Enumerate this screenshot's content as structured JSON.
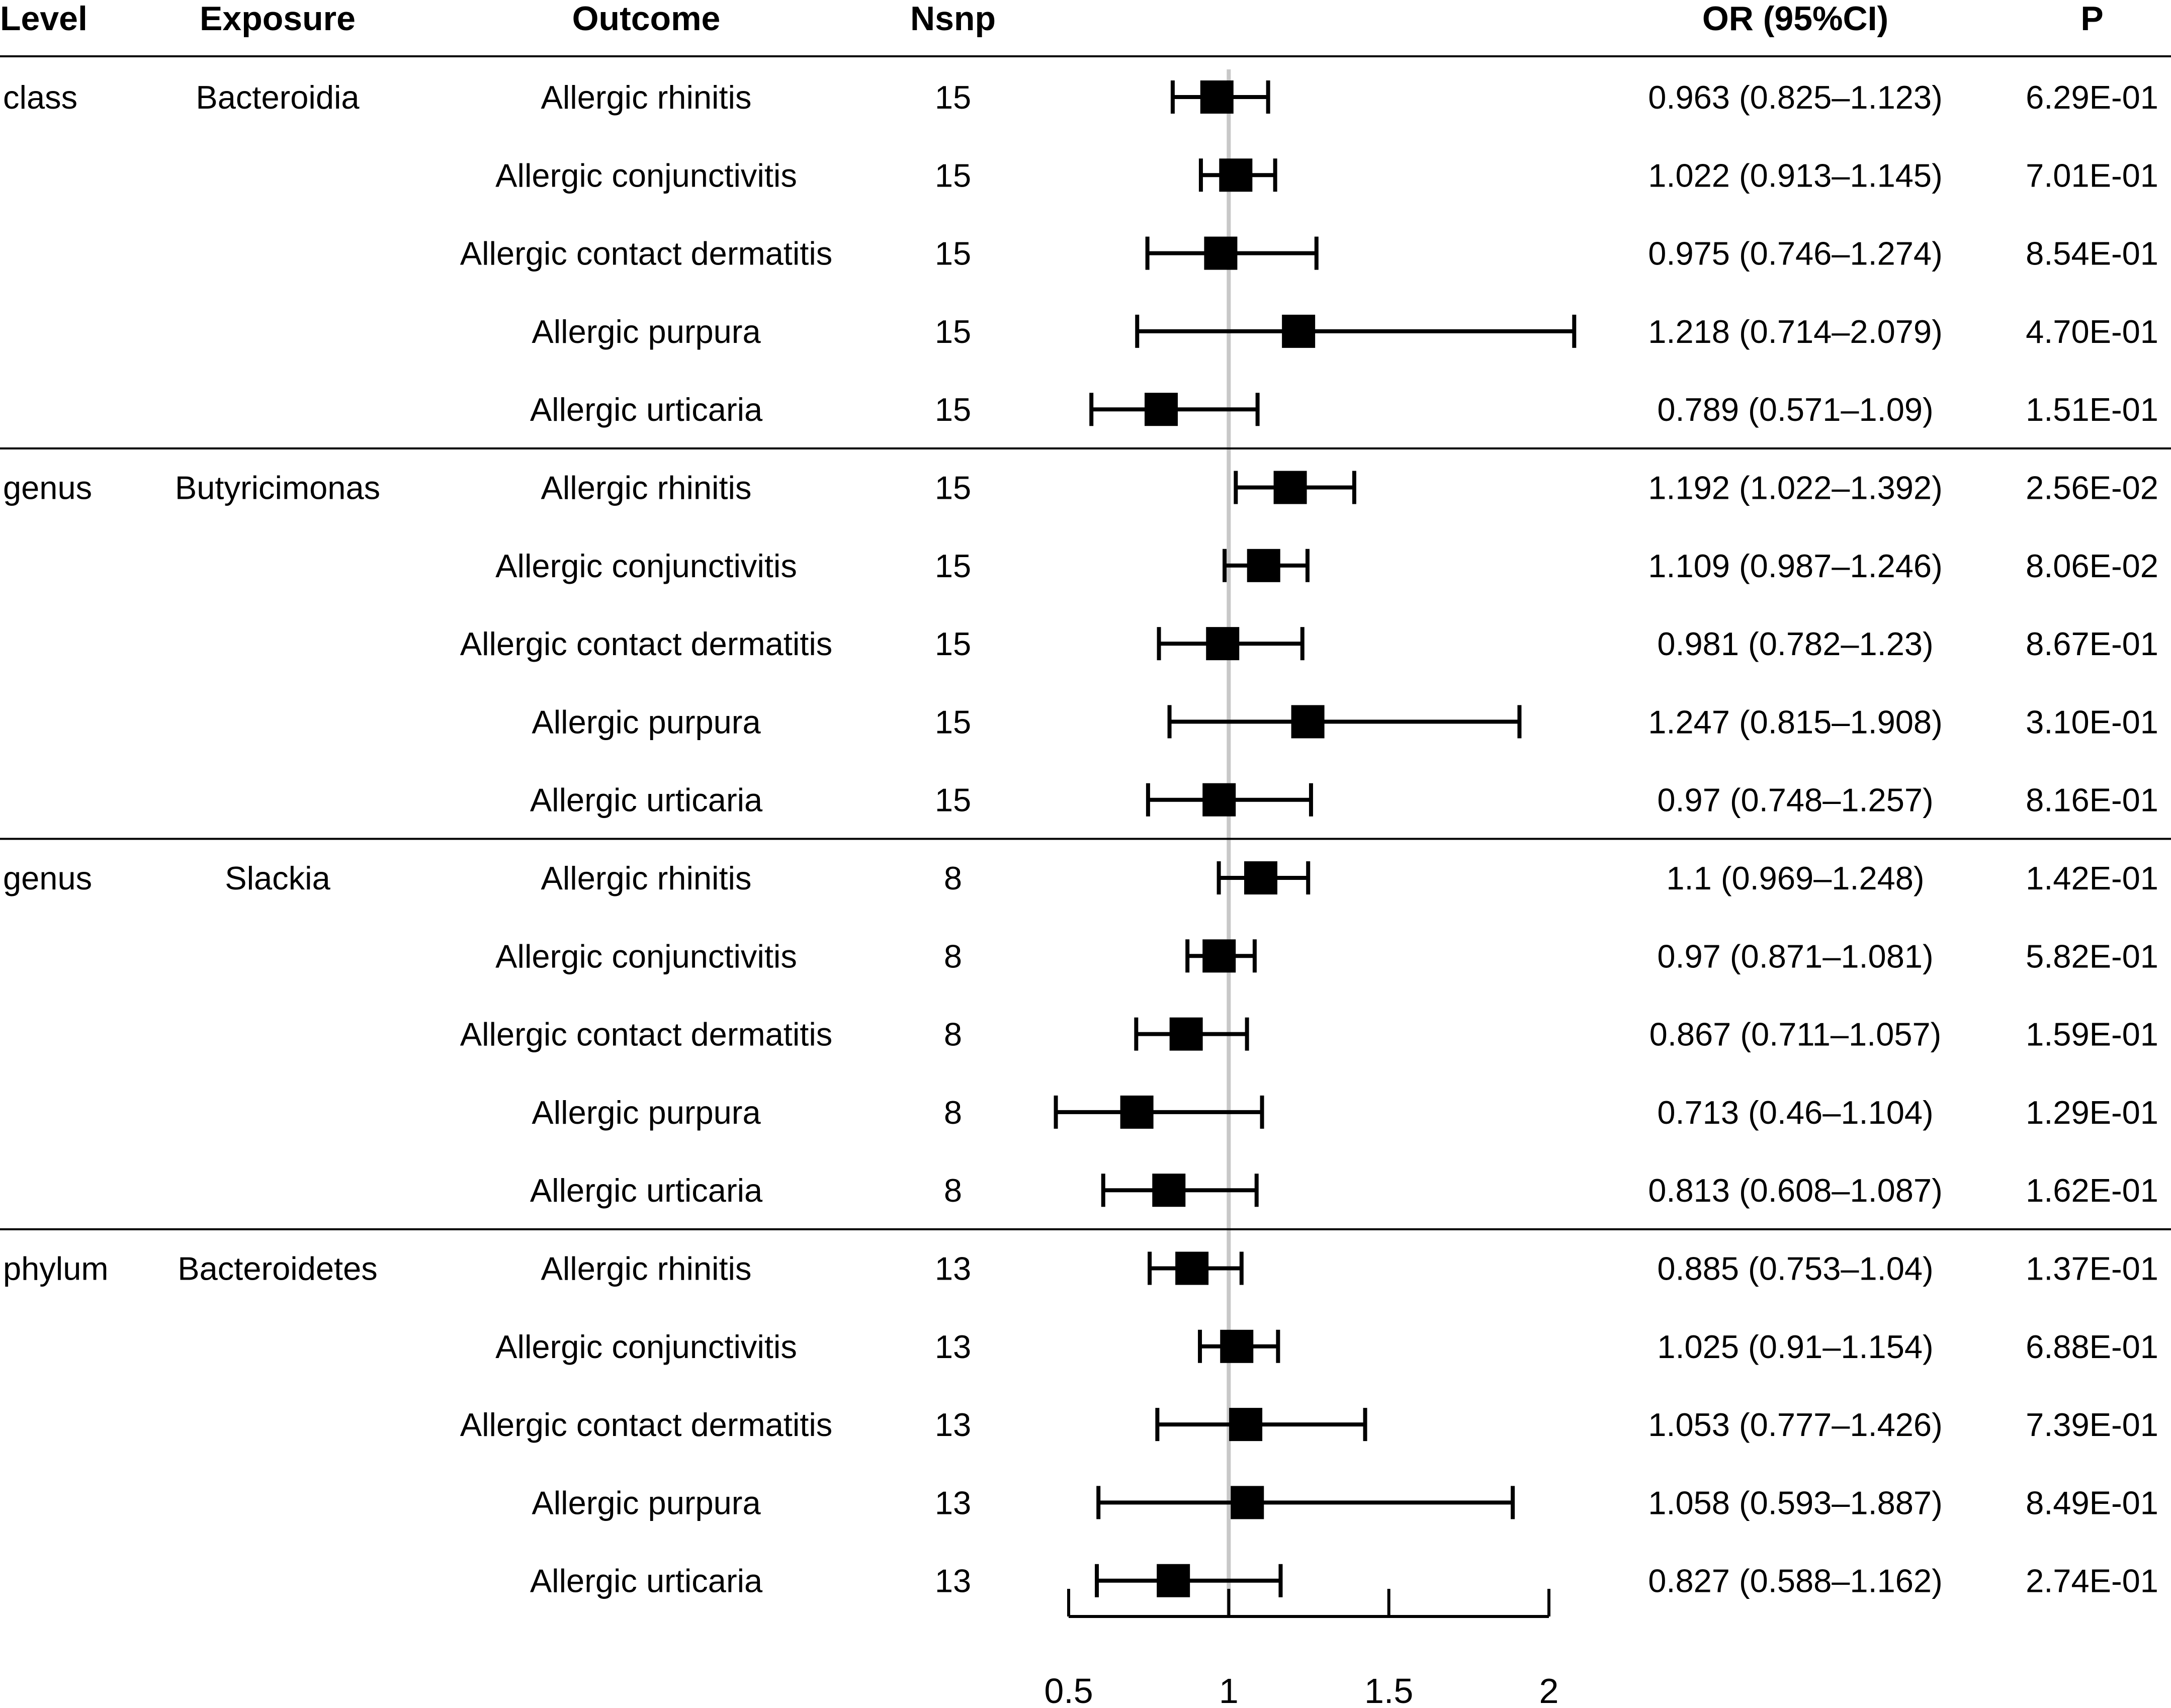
{
  "chart_data": {
    "type": "forest",
    "headers": {
      "level": "Level",
      "exposure": "Exposure",
      "outcome": "Outcome",
      "nsnp": "Nsnp",
      "or_ci": "OR (95%CI)",
      "p": "P"
    },
    "xaxis": {
      "min": 0.5,
      "max": 2,
      "ticks": [
        0.5,
        1,
        1.5,
        2
      ],
      "tick_labels": [
        "0.5",
        "1",
        "1.5",
        "2"
      ],
      "reference": 1
    },
    "groups": [
      {
        "level": "class",
        "exposure": "Bacteroidia",
        "rows": [
          {
            "outcome": "Allergic rhinitis",
            "nsnp": "15",
            "or": 0.963,
            "lower": 0.825,
            "upper": 1.123,
            "or_ci": "0.963 (0.825–1.123)",
            "p": "6.29E-01"
          },
          {
            "outcome": "Allergic conjunctivitis",
            "nsnp": "15",
            "or": 1.022,
            "lower": 0.913,
            "upper": 1.145,
            "or_ci": "1.022 (0.913–1.145)",
            "p": "7.01E-01"
          },
          {
            "outcome": "Allergic contact dermatitis",
            "nsnp": "15",
            "or": 0.975,
            "lower": 0.746,
            "upper": 1.274,
            "or_ci": "0.975 (0.746–1.274)",
            "p": "8.54E-01"
          },
          {
            "outcome": "Allergic purpura",
            "nsnp": "15",
            "or": 1.218,
            "lower": 0.714,
            "upper": 2.079,
            "or_ci": "1.218 (0.714–2.079)",
            "p": "4.70E-01"
          },
          {
            "outcome": "Allergic urticaria",
            "nsnp": "15",
            "or": 0.789,
            "lower": 0.571,
            "upper": 1.09,
            "or_ci": "0.789 (0.571–1.09)",
            "p": "1.51E-01"
          }
        ]
      },
      {
        "level": "genus",
        "exposure": "Butyricimonas",
        "rows": [
          {
            "outcome": "Allergic rhinitis",
            "nsnp": "15",
            "or": 1.192,
            "lower": 1.022,
            "upper": 1.392,
            "or_ci": "1.192 (1.022–1.392)",
            "p": "2.56E-02"
          },
          {
            "outcome": "Allergic conjunctivitis",
            "nsnp": "15",
            "or": 1.109,
            "lower": 0.987,
            "upper": 1.246,
            "or_ci": "1.109 (0.987–1.246)",
            "p": "8.06E-02"
          },
          {
            "outcome": "Allergic contact dermatitis",
            "nsnp": "15",
            "or": 0.981,
            "lower": 0.782,
            "upper": 1.23,
            "or_ci": "0.981 (0.782–1.23)",
            "p": "8.67E-01"
          },
          {
            "outcome": "Allergic purpura",
            "nsnp": "15",
            "or": 1.247,
            "lower": 0.815,
            "upper": 1.908,
            "or_ci": "1.247 (0.815–1.908)",
            "p": "3.10E-01"
          },
          {
            "outcome": "Allergic urticaria",
            "nsnp": "15",
            "or": 0.97,
            "lower": 0.748,
            "upper": 1.257,
            "or_ci": "0.97 (0.748–1.257)",
            "p": "8.16E-01"
          }
        ]
      },
      {
        "level": "genus",
        "exposure": "Slackia",
        "rows": [
          {
            "outcome": "Allergic rhinitis",
            "nsnp": "8",
            "or": 1.1,
            "lower": 0.969,
            "upper": 1.248,
            "or_ci": "1.1 (0.969–1.248)",
            "p": "1.42E-01"
          },
          {
            "outcome": "Allergic conjunctivitis",
            "nsnp": "8",
            "or": 0.97,
            "lower": 0.871,
            "upper": 1.081,
            "or_ci": "0.97 (0.871–1.081)",
            "p": "5.82E-01"
          },
          {
            "outcome": "Allergic contact dermatitis",
            "nsnp": "8",
            "or": 0.867,
            "lower": 0.711,
            "upper": 1.057,
            "or_ci": "0.867 (0.711–1.057)",
            "p": "1.59E-01"
          },
          {
            "outcome": "Allergic purpura",
            "nsnp": "8",
            "or": 0.713,
            "lower": 0.46,
            "upper": 1.104,
            "or_ci": "0.713 (0.46–1.104)",
            "p": "1.29E-01"
          },
          {
            "outcome": "Allergic urticaria",
            "nsnp": "8",
            "or": 0.813,
            "lower": 0.608,
            "upper": 1.087,
            "or_ci": "0.813 (0.608–1.087)",
            "p": "1.62E-01"
          }
        ]
      },
      {
        "level": "phylum",
        "exposure": "Bacteroidetes",
        "rows": [
          {
            "outcome": "Allergic rhinitis",
            "nsnp": "13",
            "or": 0.885,
            "lower": 0.753,
            "upper": 1.04,
            "or_ci": "0.885 (0.753–1.04)",
            "p": "1.37E-01"
          },
          {
            "outcome": "Allergic conjunctivitis",
            "nsnp": "13",
            "or": 1.025,
            "lower": 0.91,
            "upper": 1.154,
            "or_ci": "1.025 (0.91–1.154)",
            "p": "6.88E-01"
          },
          {
            "outcome": "Allergic contact dermatitis",
            "nsnp": "13",
            "or": 1.053,
            "lower": 0.777,
            "upper": 1.426,
            "or_ci": "1.053 (0.777–1.426)",
            "p": "7.39E-01"
          },
          {
            "outcome": "Allergic purpura",
            "nsnp": "13",
            "or": 1.058,
            "lower": 0.593,
            "upper": 1.887,
            "or_ci": "1.058 (0.593–1.887)",
            "p": "8.49E-01"
          },
          {
            "outcome": "Allergic urticaria",
            "nsnp": "13",
            "or": 0.827,
            "lower": 0.588,
            "upper": 1.162,
            "or_ci": "0.827 (0.588–1.162)",
            "p": "2.74E-01"
          }
        ]
      }
    ]
  }
}
